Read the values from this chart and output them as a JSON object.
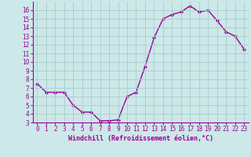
{
  "x": [
    0,
    1,
    2,
    3,
    4,
    5,
    6,
    7,
    8,
    9,
    10,
    11,
    12,
    13,
    14,
    15,
    16,
    17,
    18,
    19,
    20,
    21,
    22,
    23
  ],
  "y": [
    7.5,
    6.5,
    6.5,
    6.5,
    5.0,
    4.2,
    4.2,
    3.2,
    3.2,
    3.3,
    6.0,
    6.5,
    9.5,
    12.8,
    15.0,
    15.5,
    15.8,
    16.5,
    15.8,
    16.0,
    14.8,
    13.5,
    13.0,
    11.5
  ],
  "xlabel": "Windchill (Refroidissement éolien,°C)",
  "xlim": [
    -0.5,
    23.5
  ],
  "ylim": [
    3,
    17
  ],
  "yticks": [
    3,
    4,
    5,
    6,
    7,
    8,
    9,
    10,
    11,
    12,
    13,
    14,
    15,
    16
  ],
  "xticks": [
    0,
    1,
    2,
    3,
    4,
    5,
    6,
    7,
    8,
    9,
    10,
    11,
    12,
    13,
    14,
    15,
    16,
    17,
    18,
    19,
    20,
    21,
    22,
    23
  ],
  "line_color": "#990099",
  "marker": "D",
  "markersize": 2.0,
  "linewidth": 1.0,
  "bg_color": "#cce8e8",
  "grid_color": "#aacccc",
  "tick_color": "#990099",
  "label_color": "#990099",
  "font_family": "monospace",
  "tick_fontsize": 5.5,
  "xlabel_fontsize": 6.0
}
